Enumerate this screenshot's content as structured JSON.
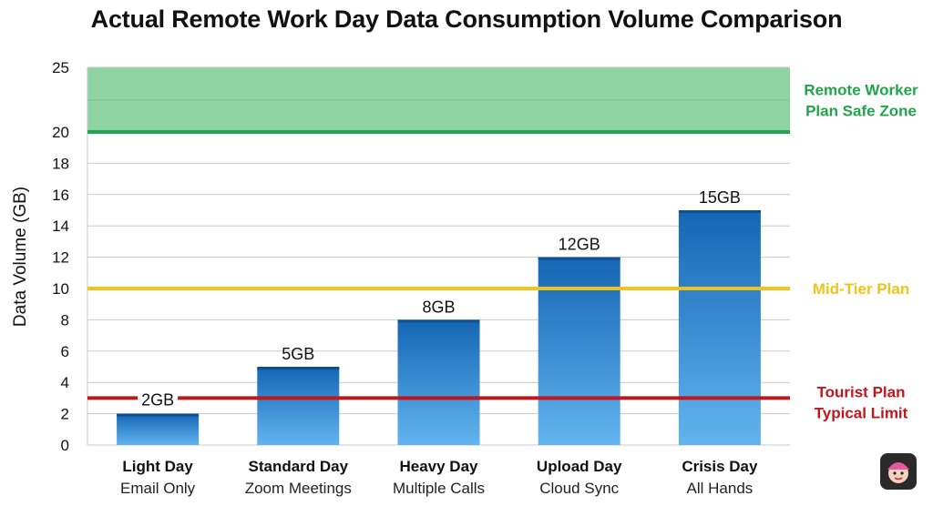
{
  "title": "Actual Remote Work Day Data Consumption Volume Comparison",
  "chart_data": {
    "type": "bar",
    "categories": [
      {
        "main": "Light Day",
        "sub": "Email Only"
      },
      {
        "main": "Standard Day",
        "sub": "Zoom Meetings"
      },
      {
        "main": "Heavy Day",
        "sub": "Multiple Calls"
      },
      {
        "main": "Upload Day",
        "sub": "Cloud Sync"
      },
      {
        "main": "Crisis Day",
        "sub": "All Hands"
      }
    ],
    "values": [
      2,
      5,
      8,
      12,
      15
    ],
    "data_labels": [
      "2GB",
      "5GB",
      "8GB",
      "12GB",
      "15GB"
    ],
    "ylabel": "Data Volume (GB)",
    "yticks": [
      0,
      2,
      4,
      6,
      8,
      10,
      12,
      14,
      16,
      18,
      20,
      25
    ],
    "ylim": [
      0,
      25
    ],
    "grid": true,
    "bands": [
      {
        "from": 20,
        "to": 25,
        "label_lines": [
          "Remote Worker",
          "Plan Safe Zone"
        ],
        "color": "#1fa54a",
        "fill": "#8fd3a2"
      }
    ],
    "reference_lines": [
      {
        "value": 10,
        "label_lines": [
          "Mid-Tier Plan"
        ],
        "color": "#f2c318"
      },
      {
        "value": 3,
        "label_lines": [
          "Tourist Plan",
          "Typical Limit"
        ],
        "color": "#c0161c"
      }
    ],
    "colors": {
      "bar_top": "#1466b4",
      "bar_bottom": "#62b4ef"
    }
  }
}
